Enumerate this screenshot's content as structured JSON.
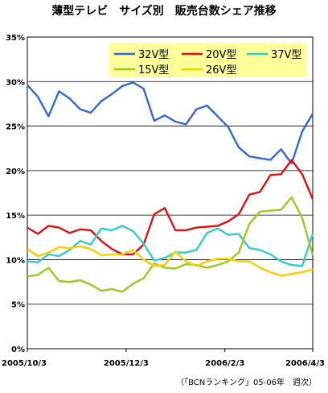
{
  "chart_data": {
    "type": "line",
    "title": "薄型テレビ　サイズ別　販売台数シェア推移",
    "source_note": "（「BCNランキング」05-06年　週次）",
    "ylim": [
      0,
      35
    ],
    "yticks": [
      "0%",
      "5%",
      "10%",
      "15%",
      "20%",
      "25%",
      "30%",
      "35%"
    ],
    "ytick_values": [
      0,
      5,
      10,
      15,
      20,
      25,
      30,
      35
    ],
    "xlim": [
      0,
      26
    ],
    "xtick_labels": [
      "2005/10/3",
      "2005/12/3",
      "2006/2/3",
      "2006/4/3"
    ],
    "xtick_positions": [
      0,
      9,
      18,
      26
    ],
    "grid": "horizontal",
    "legend_placement": "top-right",
    "series": [
      {
        "name": "32V型",
        "color": "#3366dd",
        "values": [
          29.6,
          28.3,
          26.1,
          28.9,
          28.1,
          26.9,
          26.5,
          27.8,
          28.6,
          29.5,
          29.9,
          29.2,
          25.6,
          26.2,
          25.5,
          25.2,
          26.9,
          27.3,
          26.1,
          24.9,
          22.6,
          21.6,
          21.4,
          21.2,
          22.4,
          20.8,
          24.4,
          26.4
        ]
      },
      {
        "name": "20V型",
        "color": "#dd1111",
        "values": [
          13.6,
          12.9,
          13.8,
          13.6,
          13.0,
          13.4,
          13.3,
          12.1,
          11.2,
          10.6,
          10.6,
          11.7,
          15.1,
          15.8,
          13.3,
          13.3,
          13.6,
          13.7,
          13.8,
          14.3,
          15.1,
          17.3,
          17.6,
          19.5,
          19.6,
          21.2,
          19.6,
          16.8
        ]
      },
      {
        "name": "37V型",
        "color": "#33cccc",
        "values": [
          9.8,
          9.7,
          10.6,
          10.4,
          11.1,
          12.1,
          11.7,
          13.5,
          13.3,
          13.8,
          13.2,
          11.8,
          9.9,
          10.2,
          10.8,
          10.8,
          11.1,
          13.0,
          13.5,
          12.8,
          12.9,
          11.3,
          11.1,
          10.6,
          9.8,
          9.4,
          9.3,
          12.9
        ]
      },
      {
        "name": "15V型",
        "color": "#99cc22",
        "values": [
          8.1,
          8.3,
          9.1,
          7.6,
          7.5,
          7.7,
          7.2,
          6.5,
          6.7,
          6.4,
          7.3,
          7.9,
          9.6,
          9.1,
          9.0,
          9.5,
          9.4,
          9.1,
          9.4,
          9.8,
          10.8,
          14.0,
          15.4,
          15.5,
          15.6,
          17.0,
          14.7,
          10.5
        ]
      },
      {
        "name": "26V型",
        "color": "#ffcc00",
        "values": [
          11.2,
          10.4,
          10.8,
          11.4,
          11.3,
          11.5,
          11.2,
          10.5,
          10.6,
          10.6,
          11.1,
          10.0,
          9.3,
          9.4,
          10.9,
          9.8,
          9.3,
          9.8,
          10.1,
          10.1,
          9.8,
          9.8,
          9.1,
          8.6,
          8.2,
          8.4,
          8.6,
          8.9
        ]
      }
    ]
  }
}
